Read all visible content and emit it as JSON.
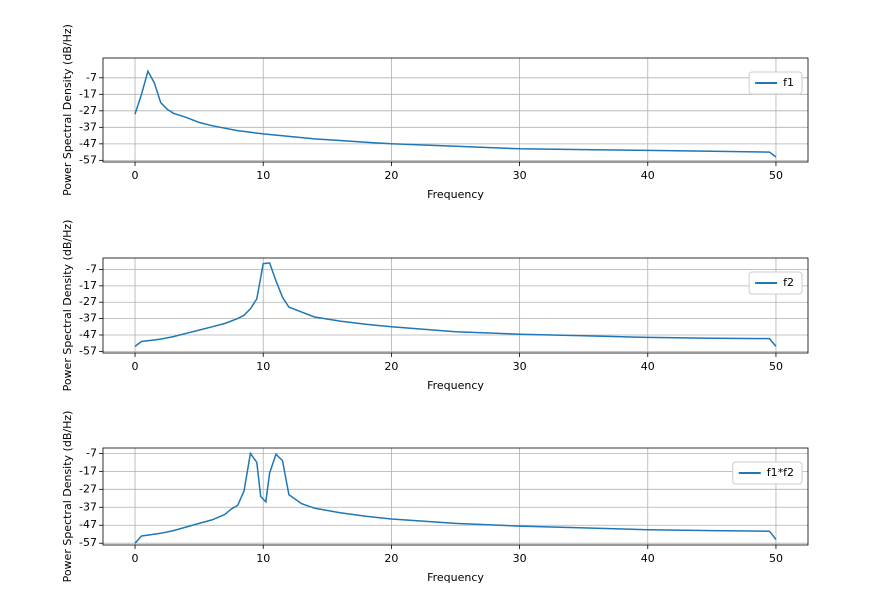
{
  "chart_data": [
    {
      "type": "line",
      "xlabel": "Frequency",
      "ylabel": "Power Spectral Density (dB/Hz)",
      "x": [
        0,
        0.5,
        1,
        1.5,
        2,
        2.5,
        3,
        4,
        5,
        6,
        7,
        8,
        9,
        10,
        12,
        14,
        16,
        18,
        20,
        25,
        30,
        35,
        40,
        45,
        49.5,
        50
      ],
      "series": [
        {
          "name": "f1",
          "color": "#1f77b4",
          "values": [
            -29,
            -17,
            -3,
            -10,
            -22,
            -26,
            -28.5,
            -31,
            -34,
            -36,
            -37.5,
            -39,
            -40,
            -41,
            -42.5,
            -44,
            -45,
            -46,
            -47,
            -48.5,
            -50,
            -50.5,
            -51,
            -51.5,
            -52,
            -55
          ]
        }
      ],
      "xlim": [
        -2.5,
        52.5
      ],
      "xticks": [
        0,
        10,
        20,
        30,
        40,
        50
      ],
      "ylim": [
        -58,
        5
      ],
      "yticks": [
        -57,
        -47,
        -37,
        -27,
        -17,
        -7
      ],
      "grid": true,
      "legend": "upper right"
    },
    {
      "type": "line",
      "xlabel": "Frequency",
      "ylabel": "Power Spectral Density (dB/Hz)",
      "x": [
        0,
        0.5,
        1,
        2,
        3,
        4,
        5,
        6,
        7,
        8,
        8.5,
        9,
        9.5,
        10,
        10.5,
        11,
        11.5,
        12,
        13,
        14,
        16,
        18,
        20,
        25,
        30,
        35,
        40,
        45,
        49.5,
        50
      ],
      "series": [
        {
          "name": "f2",
          "color": "#1f77b4",
          "values": [
            -54,
            -51,
            -50.5,
            -49.5,
            -48,
            -46,
            -44,
            -42,
            -40,
            -37,
            -35,
            -31,
            -25,
            -3.5,
            -3,
            -14,
            -24,
            -30,
            -33,
            -36,
            -38.5,
            -40.5,
            -42,
            -45,
            -46.5,
            -47.5,
            -48.5,
            -49,
            -49.2,
            -54
          ]
        }
      ],
      "xlim": [
        -2.5,
        52.5
      ],
      "xticks": [
        0,
        10,
        20,
        30,
        40,
        50
      ],
      "ylim": [
        -58,
        0
      ],
      "yticks": [
        -57,
        -47,
        -37,
        -27,
        -17,
        -7
      ],
      "grid": true,
      "legend": "upper right"
    },
    {
      "type": "line",
      "xlabel": "Frequency",
      "ylabel": "Power Spectral Density (dB/Hz)",
      "x": [
        0,
        0.5,
        1,
        2,
        3,
        4,
        5,
        6,
        7,
        7.5,
        8,
        8.5,
        9,
        9.5,
        9.8,
        10.2,
        10.5,
        11,
        11.5,
        12,
        13,
        14,
        16,
        18,
        20,
        25,
        30,
        35,
        40,
        45,
        49.5,
        50
      ],
      "series": [
        {
          "name": "f1*f2",
          "color": "#1f77b4",
          "values": [
            -57,
            -53,
            -52.5,
            -51.5,
            -50,
            -48,
            -46,
            -44,
            -41,
            -38,
            -36,
            -28,
            -7,
            -12,
            -31,
            -34,
            -18,
            -7.5,
            -11,
            -30,
            -35,
            -37.5,
            -40,
            -42,
            -43.5,
            -46,
            -47.5,
            -48.5,
            -49.5,
            -50,
            -50.3,
            -55
          ]
        }
      ],
      "xlim": [
        -2.5,
        52.5
      ],
      "xticks": [
        0,
        10,
        20,
        30,
        40,
        50
      ],
      "ylim": [
        -58,
        -4
      ],
      "yticks": [
        -57,
        -47,
        -37,
        -27,
        -17,
        -7
      ],
      "grid": true,
      "legend": "upper right"
    }
  ]
}
